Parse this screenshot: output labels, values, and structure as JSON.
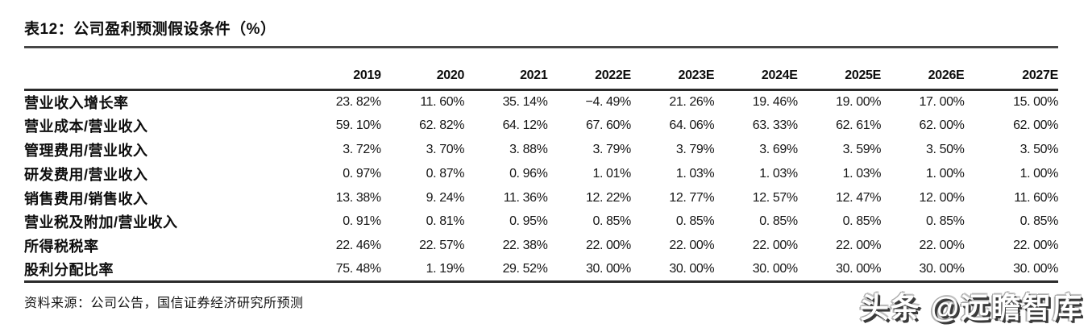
{
  "title": "表12：公司盈利预测假设条件（%）",
  "table": {
    "year_headers": [
      "2019",
      "2020",
      "2021",
      "2022E",
      "2023E",
      "2024E",
      "2025E",
      "2026E",
      "2027E"
    ],
    "rows": [
      {
        "label": "营业收入增长率",
        "values": [
          "23. 82%",
          "11. 60%",
          "35. 14%",
          "−4. 49%",
          "21. 26%",
          "19. 46%",
          "19. 00%",
          "17. 00%",
          "15. 00%"
        ]
      },
      {
        "label": "营业成本/营业收入",
        "values": [
          "59. 10%",
          "62. 82%",
          "64. 12%",
          "67. 60%",
          "64. 06%",
          "63. 33%",
          "62. 61%",
          "62. 00%",
          "62. 00%"
        ]
      },
      {
        "label": "管理费用/营业收入",
        "values": [
          "3. 72%",
          "3. 70%",
          "3. 88%",
          "3. 79%",
          "3. 79%",
          "3. 69%",
          "3. 59%",
          "3. 50%",
          "3. 50%"
        ]
      },
      {
        "label": "研发费用/营业收入",
        "values": [
          "0. 97%",
          "0. 87%",
          "0. 96%",
          "1. 01%",
          "1. 03%",
          "1. 03%",
          "1. 03%",
          "1. 00%",
          "1. 00%"
        ]
      },
      {
        "label": "销售费用/销售收入",
        "values": [
          "13. 38%",
          "9. 24%",
          "11. 36%",
          "12. 22%",
          "12. 77%",
          "12. 57%",
          "12. 47%",
          "12. 00%",
          "11. 60%"
        ]
      },
      {
        "label": "营业税及附加/营业收入",
        "values": [
          "0. 91%",
          "0. 81%",
          "0. 95%",
          "0. 85%",
          "0. 85%",
          "0. 85%",
          "0. 85%",
          "0. 85%",
          "0. 85%"
        ]
      },
      {
        "label": "所得税税率",
        "values": [
          "22. 46%",
          "22. 57%",
          "22. 38%",
          "22. 00%",
          "22. 00%",
          "22. 00%",
          "22. 00%",
          "22. 00%",
          "22. 00%"
        ]
      },
      {
        "label": "股利分配比率",
        "values": [
          "75. 48%",
          "1. 19%",
          "29. 52%",
          "30. 00%",
          "30. 00%",
          "30. 00%",
          "30. 00%",
          "30. 00%",
          "30. 00%"
        ]
      }
    ]
  },
  "footer": {
    "source": "资料来源：公司公告，国信证券经济研究所预测"
  },
  "watermark": {
    "text": "头条 @远瞻智库"
  },
  "colors": {
    "background": "#ffffff",
    "text": "#111111",
    "rule": "#2b2b2b",
    "watermark_shadow": "#3a3a3a"
  }
}
